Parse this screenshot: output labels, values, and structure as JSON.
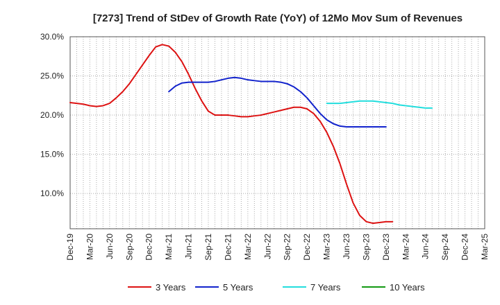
{
  "chart_data": {
    "type": "line",
    "title": "[7273]  Trend of StDev of Growth Rate (YoY) of 12Mo Mov Sum of Revenues",
    "xlabel": "",
    "ylabel": "",
    "ylim": [
      5.5,
      30.0
    ],
    "y_ticks": [
      10.0,
      15.0,
      20.0,
      25.0,
      30.0
    ],
    "y_tick_labels": [
      "10.0%",
      "15.0%",
      "20.0%",
      "25.0%",
      "30.0%"
    ],
    "x_tick_labels": [
      "Dec-19",
      "Mar-20",
      "Jun-20",
      "Sep-20",
      "Dec-20",
      "Mar-21",
      "Jun-21",
      "Sep-21",
      "Dec-21",
      "Mar-22",
      "Jun-22",
      "Sep-22",
      "Dec-22",
      "Mar-23",
      "Jun-23",
      "Sep-23",
      "Dec-23",
      "Mar-24",
      "Jun-24",
      "Sep-24",
      "Dec-24",
      "Mar-25"
    ],
    "grid": true,
    "legend_position": "bottom",
    "series": [
      {
        "name": "3 Years",
        "color": "#dd1111",
        "start_index": 0,
        "values": [
          21.6,
          21.5,
          21.4,
          21.2,
          21.1,
          21.2,
          21.5,
          22.2,
          23.0,
          24.0,
          25.2,
          26.4,
          27.6,
          28.7,
          29.0,
          28.8,
          28.0,
          26.8,
          25.2,
          23.4,
          21.8,
          20.5,
          20.0,
          20.0,
          20.0,
          19.9,
          19.8,
          19.8,
          19.9,
          20.0,
          20.2,
          20.4,
          20.6,
          20.8,
          21.0,
          21.0,
          20.8,
          20.2,
          19.2,
          17.8,
          16.0,
          13.8,
          11.2,
          8.8,
          7.2,
          6.4,
          6.2,
          6.3,
          6.4,
          6.4
        ]
      },
      {
        "name": "5 Years",
        "color": "#1122cc",
        "start_index": 15,
        "values": [
          23.0,
          23.7,
          24.1,
          24.2,
          24.2,
          24.2,
          24.2,
          24.3,
          24.5,
          24.7,
          24.8,
          24.7,
          24.5,
          24.4,
          24.3,
          24.3,
          24.3,
          24.2,
          24.0,
          23.6,
          23.0,
          22.2,
          21.2,
          20.2,
          19.4,
          18.9,
          18.6,
          18.5,
          18.5,
          18.5,
          18.5,
          18.5,
          18.5,
          18.5
        ]
      },
      {
        "name": "7 Years",
        "color": "#22dddd",
        "start_index": 39,
        "values": [
          21.5,
          21.5,
          21.5,
          21.6,
          21.7,
          21.8,
          21.8,
          21.8,
          21.7,
          21.6,
          21.5,
          21.3,
          21.2,
          21.1,
          21.0,
          20.9,
          20.9
        ]
      },
      {
        "name": "10 Years",
        "color": "#119911",
        "start_index": 0,
        "values": []
      }
    ]
  }
}
